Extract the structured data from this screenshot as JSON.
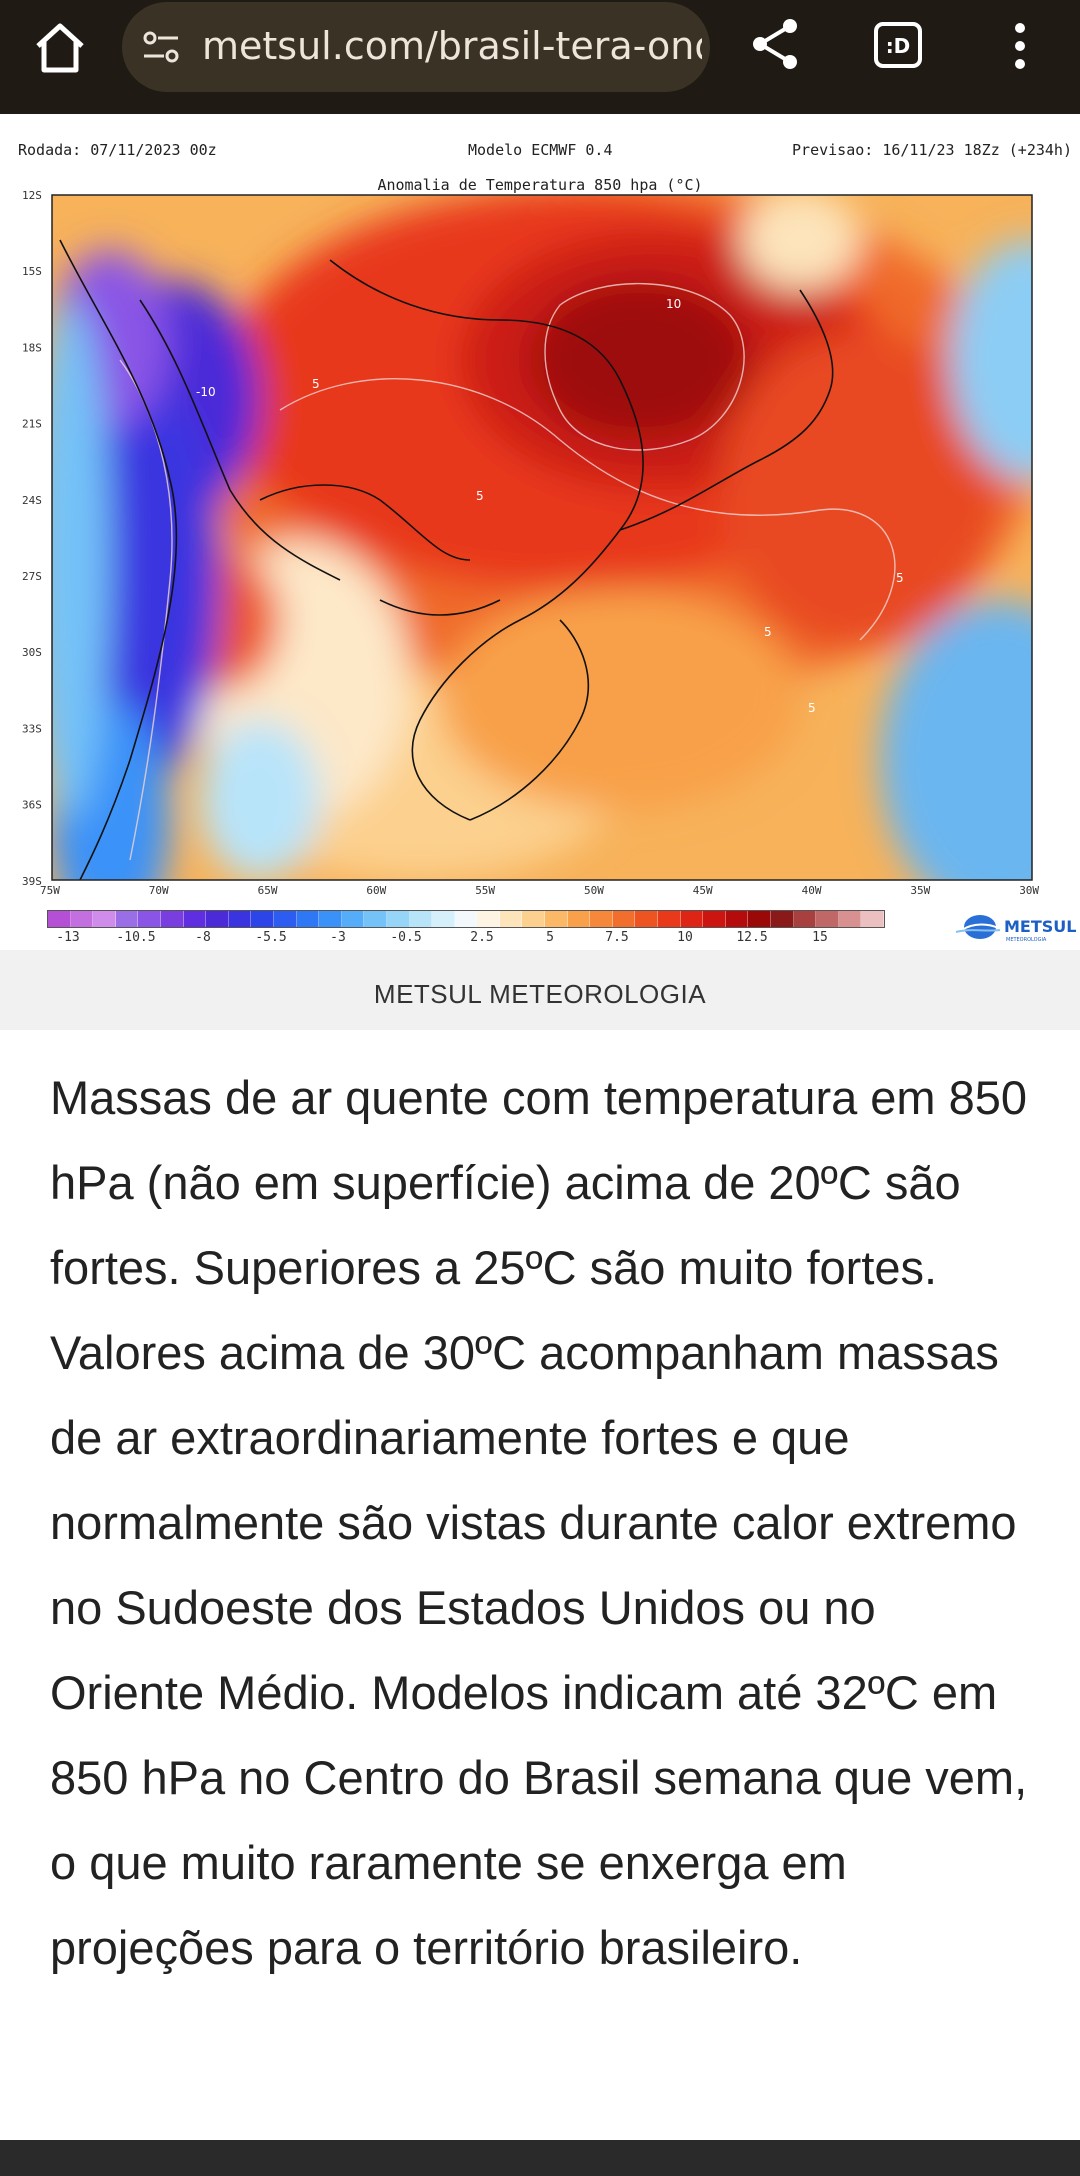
{
  "browser": {
    "url": "metsul.com/brasil-tera-onda",
    "home_icon": "home-icon",
    "site_settings_icon": "tune-icon",
    "share_icon": "share-icon",
    "tabs_label": ":D",
    "menu_icon": "more-vert-icon"
  },
  "figure": {
    "run_label": "Rodada: 07/11/2023 00z",
    "model_label": "Modelo ECMWF 0.4",
    "forecast_label": "Previsao: 16/11/23 18Zz (+234h)",
    "map_title": "Anomalia de Temperatura 850 hpa (°C)",
    "lat_labels": [
      "12S",
      "15S",
      "18S",
      "21S",
      "24S",
      "27S",
      "30S",
      "33S",
      "36S",
      "39S"
    ],
    "lon_labels": [
      "75W",
      "70W",
      "65W",
      "60W",
      "55W",
      "50W",
      "45W",
      "40W",
      "35W",
      "30W"
    ],
    "contour_labels": [
      "10",
      "-10",
      "5",
      "5",
      "5",
      "5",
      "5"
    ],
    "colorbar_colors": [
      "#b54fd6",
      "#c36fe0",
      "#cf8cea",
      "#9a6ee6",
      "#8a55e6",
      "#7a3ee0",
      "#5e2ee0",
      "#4b2ad8",
      "#3a34e0",
      "#2c45e8",
      "#2d5cf0",
      "#2e78f5",
      "#3a92f8",
      "#55acf8",
      "#74c2f8",
      "#96d4f8",
      "#b8e4fa",
      "#d6f0fb",
      "#f2f8fb",
      "#fdf4e4",
      "#fde4bb",
      "#fcd08e",
      "#fbb866",
      "#f8a04a",
      "#f5883a",
      "#f26e2c",
      "#ee5422",
      "#e83a1a",
      "#de2414",
      "#cc1410",
      "#b40c0c",
      "#9a0808",
      "#8a1a1a",
      "#a84040",
      "#c06868",
      "#d89090",
      "#ecc0c0"
    ],
    "colorbar_ticks": [
      "-13",
      "-10.5",
      "-8",
      "-5.5",
      "-3",
      "-0.5",
      "2.5",
      "5",
      "7.5",
      "10",
      "12.5",
      "15"
    ],
    "logo_text": "METSUL",
    "logo_subtext": "METEOROLOGIA",
    "logo_icon": "globe-icon"
  },
  "caption": "METSUL METEOROLOGIA",
  "article": {
    "paragraph": "Massas de ar quente com temperatura em 850 hPa (não em superfície) acima de 20ºC são fortes. Superiores a 25ºC são muito fortes. Valores acima de 30ºC acompanham massas de ar extraordinariamente fortes e que normalmente são vistas durante calor extremo no Sudoeste dos Estados Unidos ou no Oriente Médio. Modelos indicam até 32ºC em 850 hPa no Centro do Brasil semana que vem, o que muito raramente se enxerga em projeções para o território brasileiro."
  },
  "colors": {
    "toolbar_bg": "#1f1a13",
    "urlbar_bg": "#3a3325",
    "caption_bg": "#f1f1f1"
  }
}
